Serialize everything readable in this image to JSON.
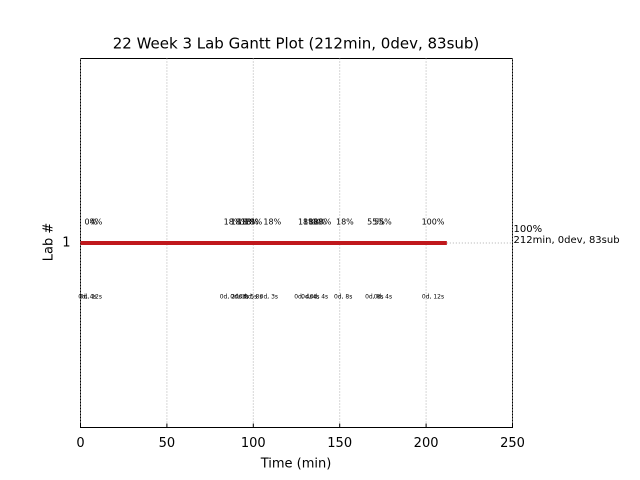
{
  "chart_data": {
    "type": "gantt",
    "title": "22 Week 3 Lab Gantt Plot (212min, 0dev, 83sub)",
    "x_label": "Time (min)",
    "y_label": "Lab #",
    "categories": [
      "1"
    ],
    "values": [
      212
    ],
    "color": "#c0181c",
    "end_labels": [
      "100%",
      "212min, 0dev, 83sub"
    ],
    "xlim": [
      0,
      250
    ],
    "xticks": [
      0,
      50,
      100,
      150,
      200,
      250
    ],
    "grid": true,
    "top_annotations": [
      {
        "x": 6,
        "label": "0%"
      },
      {
        "x": 9,
        "label": "4%"
      },
      {
        "x": 88,
        "label": "18%"
      },
      {
        "x": 92,
        "label": "18%"
      },
      {
        "x": 96,
        "label": "18%"
      },
      {
        "x": 98,
        "label": "18%"
      },
      {
        "x": 100,
        "label": "18%"
      },
      {
        "x": 111,
        "label": "18%"
      },
      {
        "x": 131,
        "label": "18%"
      },
      {
        "x": 134,
        "label": "18%"
      },
      {
        "x": 137,
        "label": "18%"
      },
      {
        "x": 140,
        "label": "18%"
      },
      {
        "x": 153,
        "label": "18%"
      },
      {
        "x": 171,
        "label": "55%"
      },
      {
        "x": 175,
        "label": "55%"
      },
      {
        "x": 204,
        "label": "100%"
      }
    ],
    "bottom_annotations": [
      {
        "x": 4,
        "label": "0d, 4s"
      },
      {
        "x": 6,
        "label": "0d, 12s"
      },
      {
        "x": 87,
        "label": "0d, 20s"
      },
      {
        "x": 92,
        "label": "0d, 3s"
      },
      {
        "x": 97,
        "label": "0d, 5s"
      },
      {
        "x": 100,
        "label": "0d, 8s"
      },
      {
        "x": 109,
        "label": "0d, 3s"
      },
      {
        "x": 129,
        "label": "0d, 4s"
      },
      {
        "x": 133,
        "label": "0d, 4s"
      },
      {
        "x": 138,
        "label": "0d, 4s"
      },
      {
        "x": 152,
        "label": "0d, 8s"
      },
      {
        "x": 170,
        "label": "0d, 8s"
      },
      {
        "x": 175,
        "label": "0d, 4s"
      },
      {
        "x": 204,
        "label": "0d, 12s"
      }
    ]
  }
}
